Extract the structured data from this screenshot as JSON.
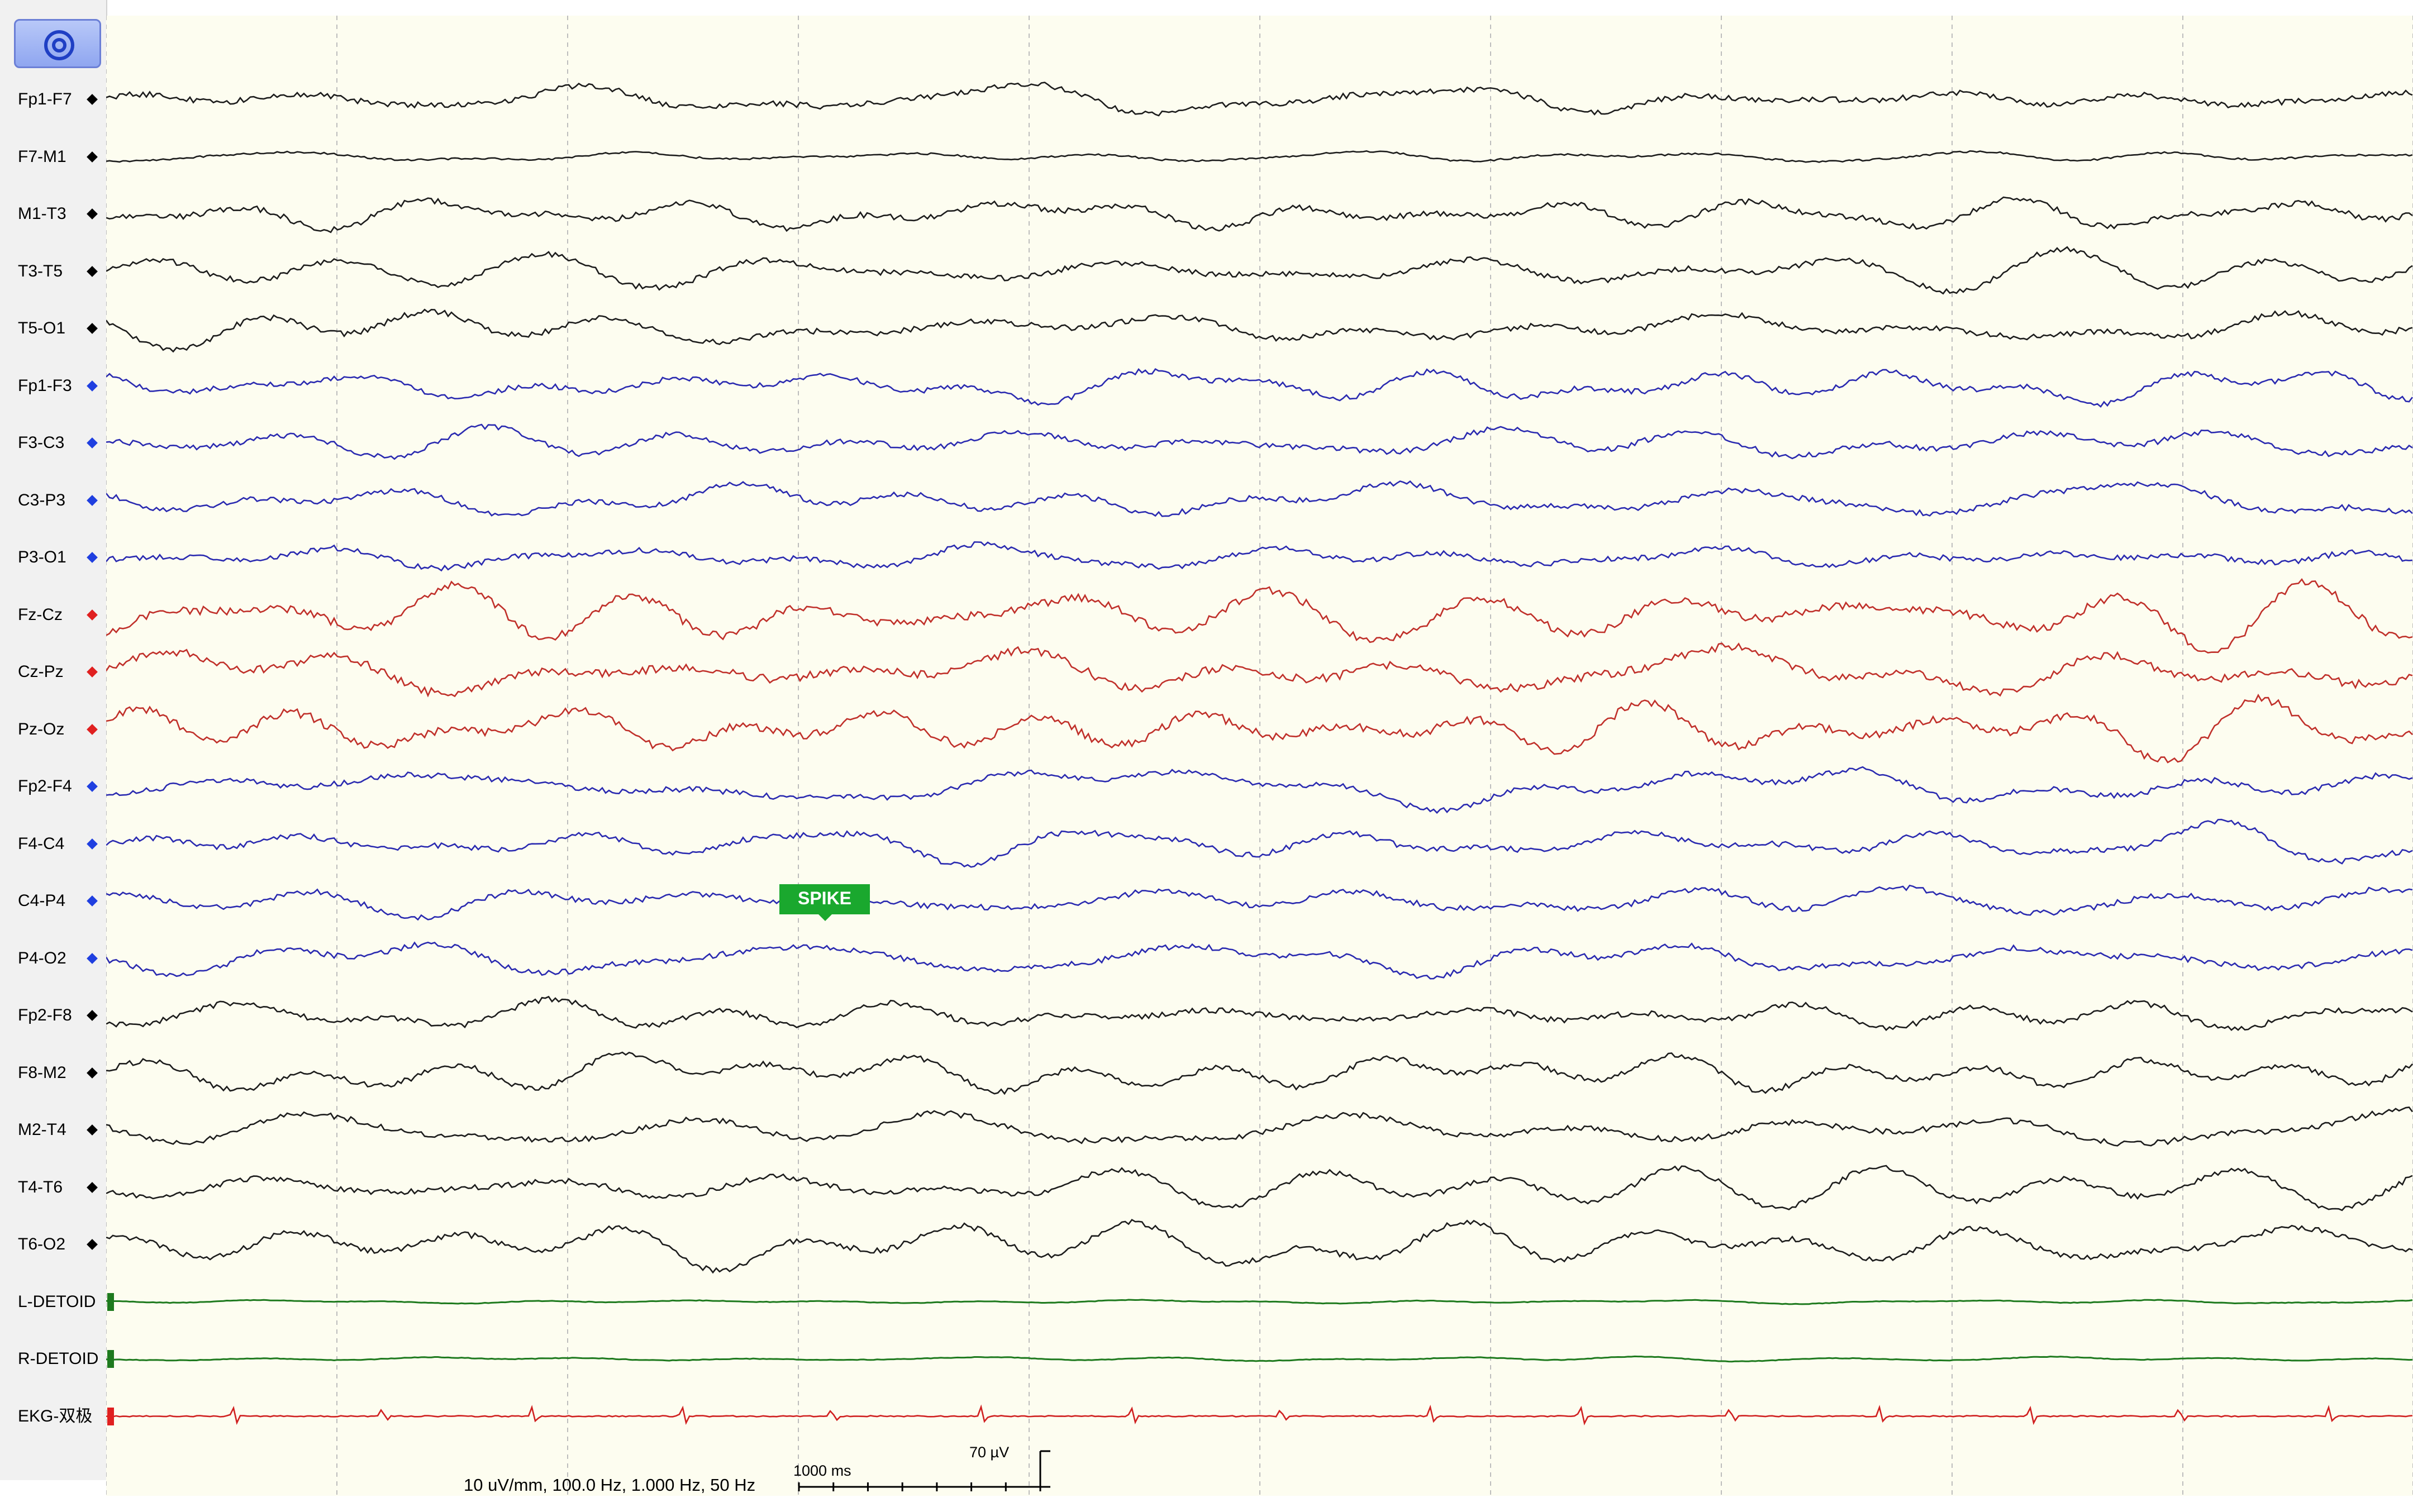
{
  "toolbar": {
    "target_icon": "target-icon"
  },
  "channels": [
    {
      "label": "Fp1-F7",
      "color": "#1c1c1c",
      "group": "left-temporal"
    },
    {
      "label": "F7-M1",
      "color": "#1c1c1c",
      "group": "left-temporal"
    },
    {
      "label": "M1-T3",
      "color": "#1c1c1c",
      "group": "left-temporal"
    },
    {
      "label": "T3-T5",
      "color": "#1c1c1c",
      "group": "left-temporal"
    },
    {
      "label": "T5-O1",
      "color": "#1c1c1c",
      "group": "left-temporal"
    },
    {
      "label": "Fp1-F3",
      "color": "#2a2ab0",
      "group": "left-parasagittal"
    },
    {
      "label": "F3-C3",
      "color": "#2a2ab0",
      "group": "left-parasagittal"
    },
    {
      "label": "C3-P3",
      "color": "#2a2ab0",
      "group": "left-parasagittal"
    },
    {
      "label": "P3-O1",
      "color": "#2a2ab0",
      "group": "left-parasagittal"
    },
    {
      "label": "Fz-Cz",
      "color": "#c0302a",
      "group": "midline"
    },
    {
      "label": "Cz-Pz",
      "color": "#c0302a",
      "group": "midline"
    },
    {
      "label": "Pz-Oz",
      "color": "#c0302a",
      "group": "midline"
    },
    {
      "label": "Fp2-F4",
      "color": "#2a2ab0",
      "group": "right-parasagittal"
    },
    {
      "label": "F4-C4",
      "color": "#2a2ab0",
      "group": "right-parasagittal"
    },
    {
      "label": "C4-P4",
      "color": "#2a2ab0",
      "group": "right-parasagittal"
    },
    {
      "label": "P4-O2",
      "color": "#2a2ab0",
      "group": "right-parasagittal"
    },
    {
      "label": "Fp2-F8",
      "color": "#1c1c1c",
      "group": "right-temporal"
    },
    {
      "label": "F8-M2",
      "color": "#1c1c1c",
      "group": "right-temporal"
    },
    {
      "label": "M2-T4",
      "color": "#1c1c1c",
      "group": "right-temporal"
    },
    {
      "label": "T4-T6",
      "color": "#1c1c1c",
      "group": "right-temporal"
    },
    {
      "label": "T6-O2",
      "color": "#1c1c1c",
      "group": "right-temporal"
    },
    {
      "label": "L-DETOID",
      "color": "#1e7a1e",
      "group": "emg"
    },
    {
      "label": "R-DETOID",
      "color": "#1e7a1e",
      "group": "emg"
    },
    {
      "label": "EKG-双极",
      "color": "#d02020",
      "group": "ekg"
    }
  ],
  "annotations": [
    {
      "text": "SPIKE",
      "color": "#1aa82e",
      "channel": "C4-P4"
    }
  ],
  "scale": {
    "time_label": "1000 ms",
    "amplitude_label": "70 µV",
    "settings_text": "10 uV/mm, 100.0 Hz, 1.000 Hz, 50 Hz"
  },
  "colors": {
    "background": "#fdfdf0",
    "grid": "#bdbdbd",
    "label_panel": "#f1f1f1"
  }
}
